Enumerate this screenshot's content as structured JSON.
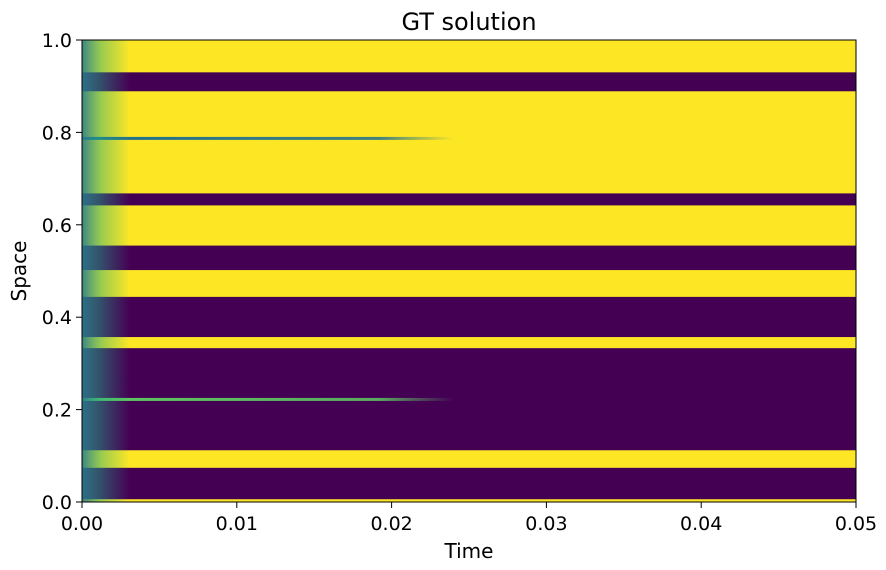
{
  "chart_data": {
    "type": "heatmap",
    "title": "GT solution",
    "xlabel": "Time",
    "ylabel": "Space",
    "xlim": [
      0.0,
      0.05
    ],
    "ylim": [
      0.0,
      1.0
    ],
    "xticks": [
      0.0,
      0.01,
      0.02,
      0.03,
      0.04,
      0.05
    ],
    "xtick_labels": [
      "0.00",
      "0.01",
      "0.02",
      "0.03",
      "0.04",
      "0.05"
    ],
    "yticks": [
      0.0,
      0.2,
      0.4,
      0.6,
      0.8,
      1.0
    ],
    "ytick_labels": [
      "0.0",
      "0.2",
      "0.4",
      "0.6",
      "0.8",
      "1.0"
    ],
    "grid": false,
    "colormap": "viridis",
    "colors": {
      "high": "#fde725",
      "low": "#440154",
      "mid": "#21918c"
    },
    "high_value_bands": [
      {
        "space_start": 0.0,
        "space_end": 0.006
      },
      {
        "space_start": 0.074,
        "space_end": 0.112
      },
      {
        "space_start": 0.333,
        "space_end": 0.357
      },
      {
        "space_start": 0.444,
        "space_end": 0.502
      },
      {
        "space_start": 0.555,
        "space_end": 0.642
      },
      {
        "space_start": 0.668,
        "space_end": 0.889
      },
      {
        "space_start": 0.93,
        "space_end": 1.0
      }
    ],
    "transient_lines": [
      {
        "space": 0.787,
        "type": "low_in_high",
        "end_time": 0.024
      },
      {
        "space": 0.222,
        "type": "high_in_low",
        "end_time": 0.024
      }
    ]
  }
}
